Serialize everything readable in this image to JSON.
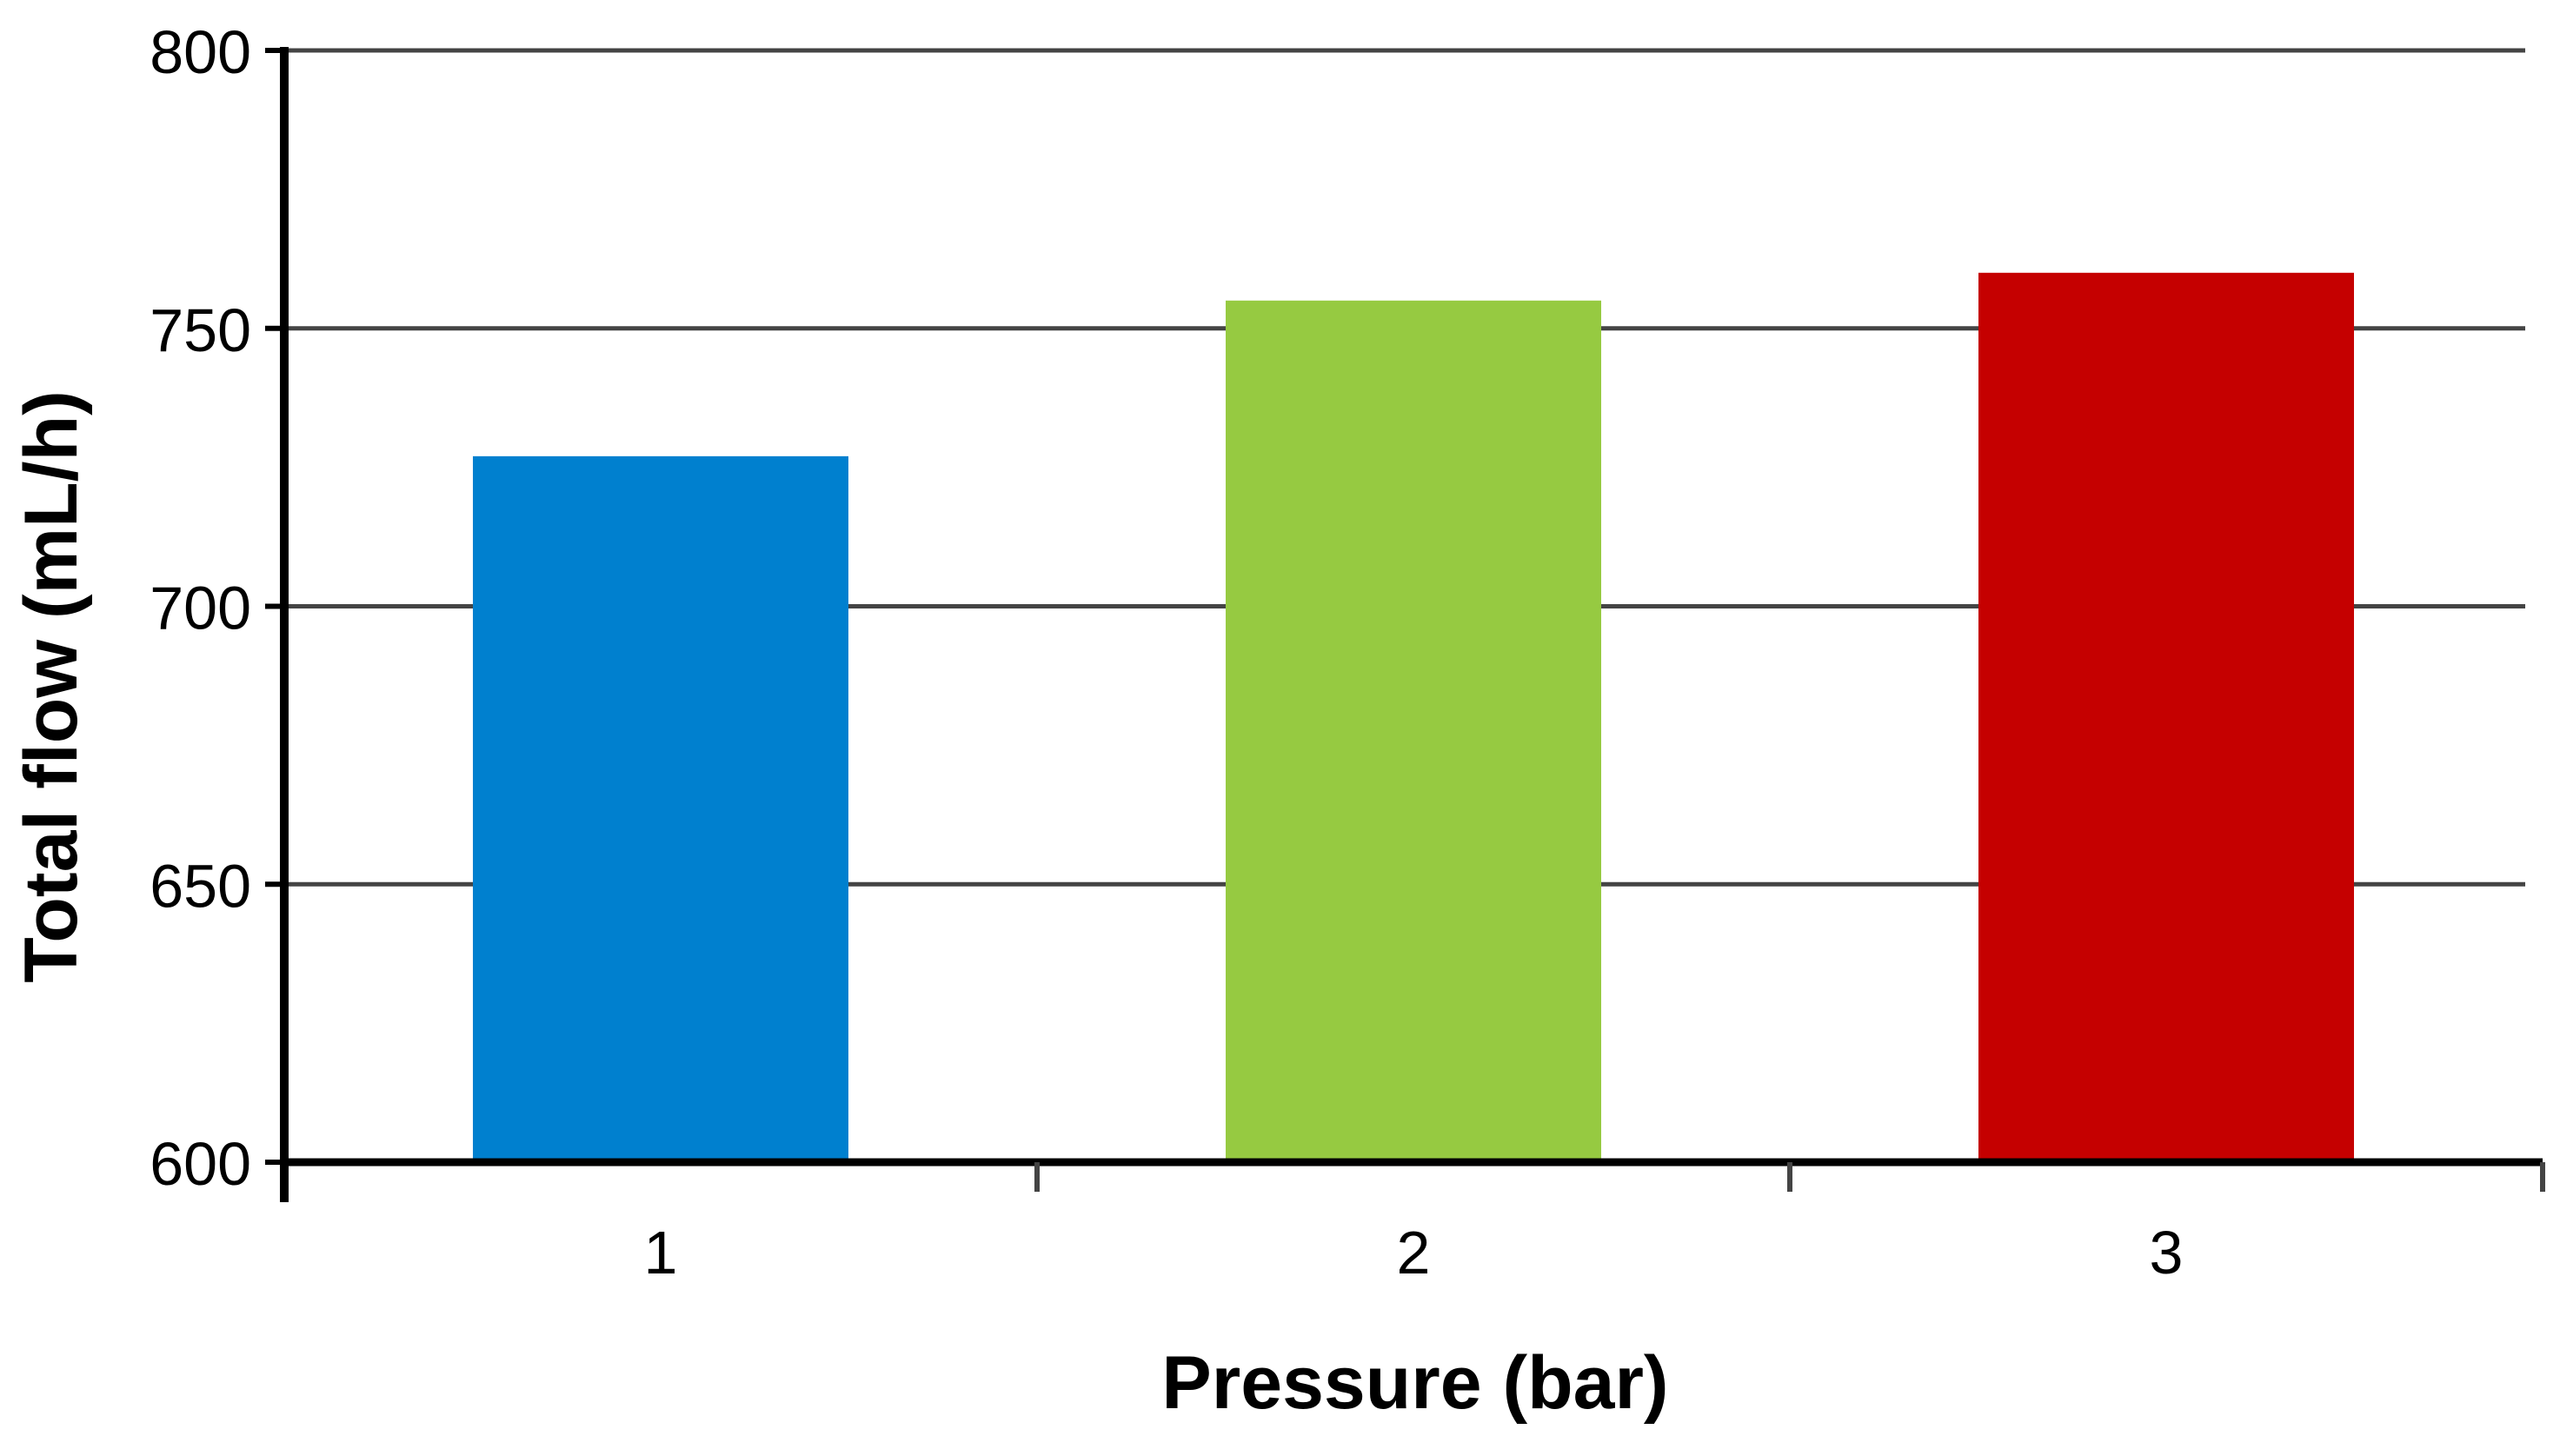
{
  "chart_data": {
    "type": "bar",
    "categories": [
      "1",
      "2",
      "3"
    ],
    "values": [
      727,
      755,
      760
    ],
    "colors": [
      "#0080cf",
      "#96ca41",
      "#c50000"
    ],
    "title": "",
    "xlabel": "Pressure (bar)",
    "ylabel": "Total flow (mL/h)",
    "ylim": [
      600,
      800
    ],
    "yticks": [
      "600",
      "650",
      "700",
      "750",
      "800"
    ],
    "grid": true,
    "legend": "none"
  }
}
